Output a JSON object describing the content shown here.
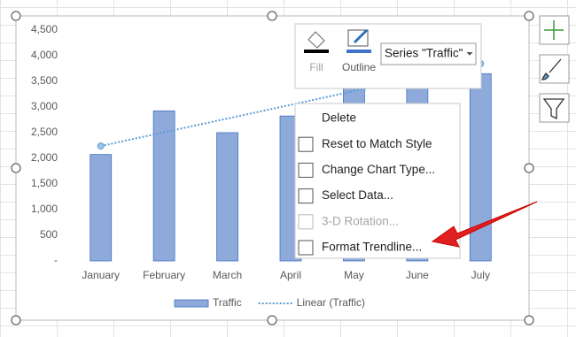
{
  "chart_data": {
    "type": "bar",
    "categories": [
      "January",
      "February",
      "March",
      "April",
      "May",
      "June",
      "July"
    ],
    "series": [
      {
        "name": "Traffic",
        "type": "bar",
        "color": "#8eaadb",
        "values": [
          2075,
          2925,
          2500,
          2825,
          3400,
          3500,
          3650
        ]
      },
      {
        "name": "Linear (Traffic)",
        "type": "line",
        "color": "#5b9bd5",
        "values": [
          2240,
          2508,
          2775,
          3043,
          3310,
          3578,
          3845
        ]
      }
    ],
    "ylim": [
      0,
      4500
    ],
    "yticks": [
      {
        "value": 0,
        "label": "-"
      },
      {
        "value": 500,
        "label": "500"
      },
      {
        "value": 1000,
        "label": "1,000"
      },
      {
        "value": 1500,
        "label": "1,500"
      },
      {
        "value": 2000,
        "label": "2,000"
      },
      {
        "value": 2500,
        "label": "2,500"
      },
      {
        "value": 3000,
        "label": "3,000"
      },
      {
        "value": 3500,
        "label": "3,500"
      },
      {
        "value": 4000,
        "label": "4,000"
      },
      {
        "value": 4500,
        "label": "4,500"
      }
    ],
    "grid": false,
    "legend": "bottom"
  },
  "toolbar": {
    "fill": "Fill",
    "outline": "Outline",
    "selector": "Series \"Traffic\""
  },
  "context_menu": {
    "items": [
      {
        "label": "Delete",
        "enabled": true
      },
      {
        "label": "Reset to Match Style",
        "enabled": true
      },
      {
        "label": "Change Chart Type...",
        "enabled": true
      },
      {
        "label": "Select Data...",
        "enabled": true
      },
      {
        "label": "3-D Rotation...",
        "enabled": false
      },
      {
        "label": "Format Trendline...",
        "enabled": true
      }
    ]
  }
}
